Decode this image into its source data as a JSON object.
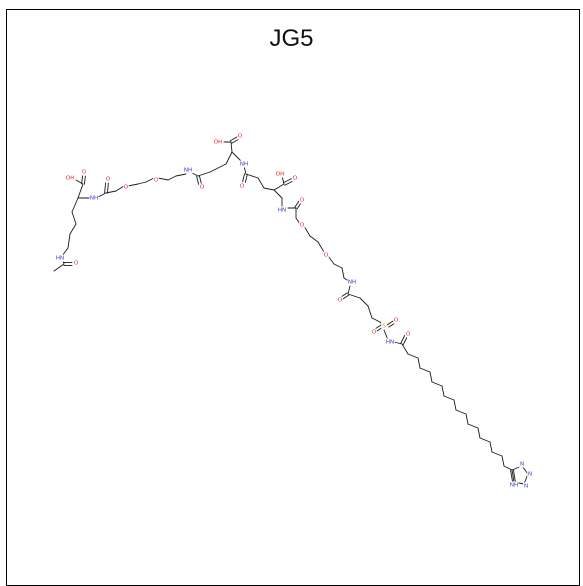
{
  "title": "JG5",
  "colors": {
    "border": "#000000",
    "bond": "#1a1a1a",
    "oxygen": "#e8202a",
    "nitrogen": "#2f37d6",
    "sulfur": "#c9a400"
  },
  "atom_labels": {
    "oh": "OH",
    "o": "O",
    "nh": "NH",
    "hn": "HN",
    "n": "N",
    "s": "S"
  }
}
